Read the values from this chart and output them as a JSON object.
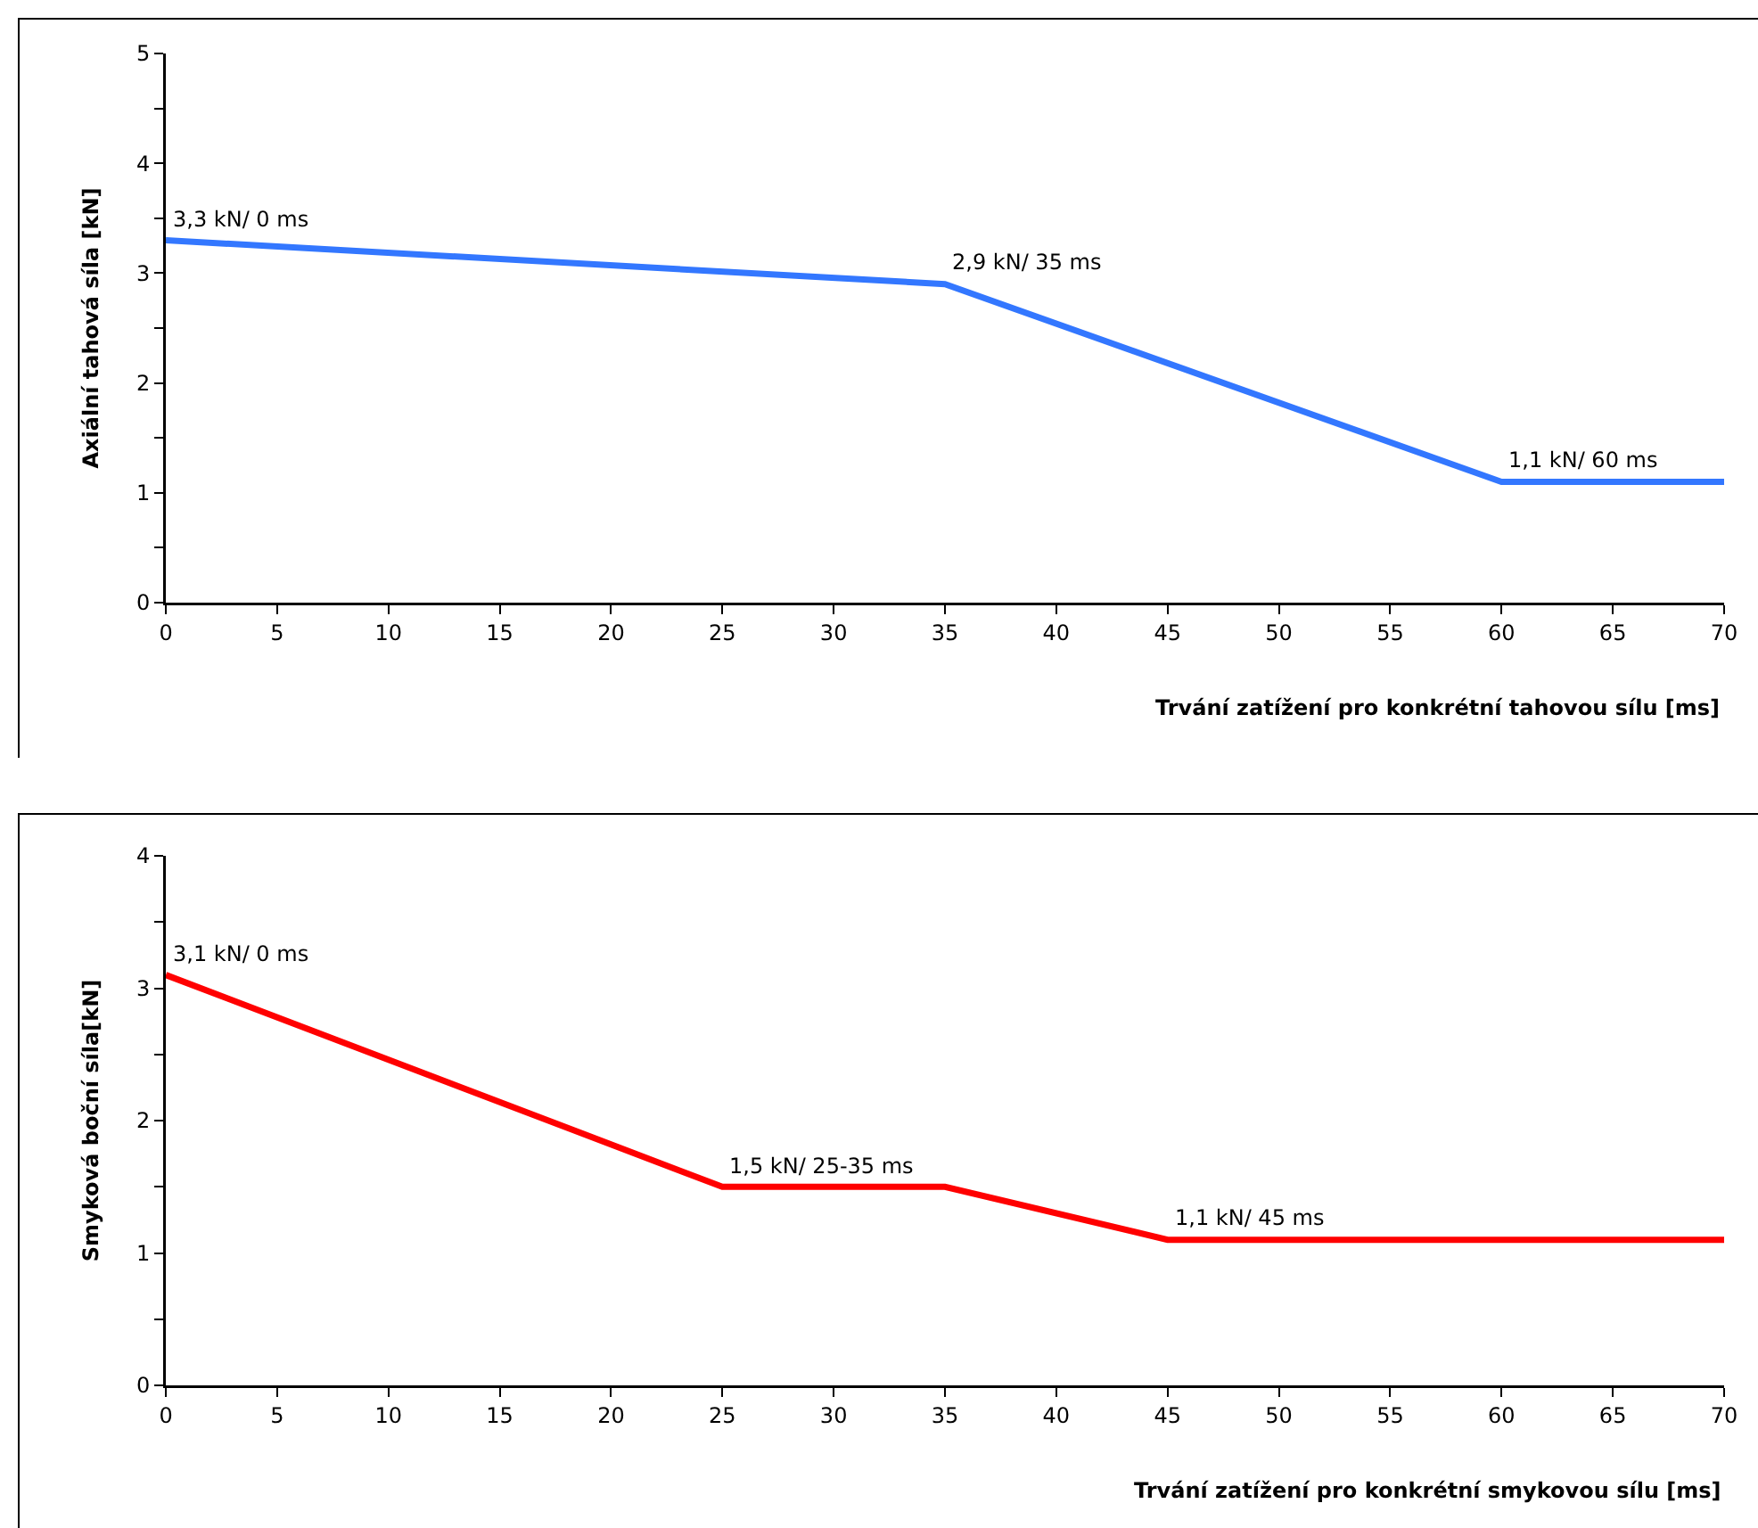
{
  "chart_data": [
    {
      "type": "line",
      "xlabel": "Trvání zatížení pro konkrétní tahovou sílu [ms]",
      "ylabel": "Axiální tahová síla [kN]",
      "x": [
        0,
        35,
        60,
        70
      ],
      "series": [
        {
          "color": "#3377ff",
          "values": [
            3.3,
            2.9,
            1.1,
            1.1
          ]
        }
      ],
      "xlim": [
        0,
        70
      ],
      "xticks": [
        0,
        5,
        10,
        15,
        20,
        25,
        30,
        35,
        40,
        45,
        50,
        55,
        60,
        65,
        70
      ],
      "ylim": [
        0,
        5
      ],
      "yticks": [
        0,
        {
          "value": 0.5,
          "label": null
        },
        1,
        {
          "value": 1.5,
          "label": null
        },
        2,
        {
          "value": 2.5,
          "label": null
        },
        3,
        {
          "value": 3.5,
          "label": null
        },
        4,
        {
          "value": 4.5,
          "label": null
        },
        5
      ],
      "grid": false,
      "marker": "none",
      "line_style": "solid",
      "annotations": [
        {
          "text": "3,3 kN/ 0 ms",
          "x": 0,
          "y": 3.3
        },
        {
          "text": "2,9 kN/ 35 ms",
          "x": 35,
          "y": 2.9
        },
        {
          "text": "1,1 kN/ 60 ms",
          "x": 60,
          "y": 1.1
        }
      ]
    },
    {
      "type": "line",
      "xlabel": "Trvání zatížení pro konkrétní smykovou sílu [ms]",
      "ylabel": "Smyková boční síla[kN]",
      "x": [
        0,
        25,
        35,
        45,
        70
      ],
      "series": [
        {
          "color": "#ff0000",
          "values": [
            3.1,
            1.5,
            1.5,
            1.1,
            1.1
          ]
        }
      ],
      "xlim": [
        0,
        70
      ],
      "xticks": [
        0,
        5,
        10,
        15,
        20,
        25,
        30,
        35,
        40,
        45,
        50,
        55,
        60,
        65,
        70
      ],
      "ylim": [
        0,
        4
      ],
      "yticks": [
        0,
        {
          "value": 0.5,
          "label": null
        },
        1,
        {
          "value": 1.5,
          "label": null
        },
        2,
        {
          "value": 2.5,
          "label": null
        },
        3,
        {
          "value": 3.5,
          "label": null
        },
        4
      ],
      "grid": false,
      "marker": "none",
      "line_style": "solid",
      "annotations": [
        {
          "text": "3,1 kN/ 0 ms",
          "x": 0,
          "y": 3.1
        },
        {
          "text": "1,5 kN/ 25-35 ms",
          "x": 25,
          "y": 1.5
        },
        {
          "text": "1,1 kN/ 45 ms",
          "x": 45,
          "y": 1.1
        }
      ]
    }
  ]
}
